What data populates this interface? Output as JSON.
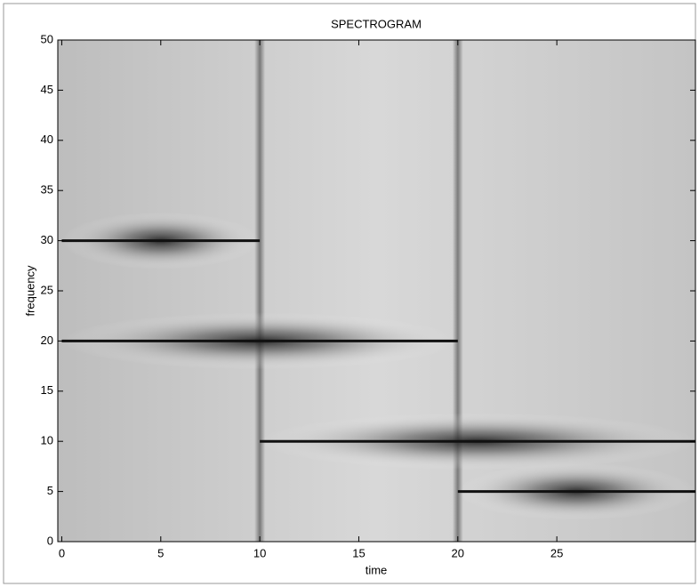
{
  "chart_data": {
    "type": "spectrogram",
    "title": "SPECTROGRAM",
    "xlabel": "time",
    "ylabel": "frequency",
    "xlim": [
      -0.2,
      32
    ],
    "ylim": [
      0,
      50
    ],
    "xticks": [
      0,
      5,
      10,
      15,
      20,
      25
    ],
    "yticks": [
      0,
      5,
      10,
      15,
      20,
      25,
      30,
      35,
      40,
      45,
      50
    ],
    "tones": [
      {
        "start": 0,
        "end": 10,
        "frequency": 30
      },
      {
        "start": 0,
        "end": 20,
        "frequency": 20
      },
      {
        "start": 10,
        "end": 32,
        "frequency": 10
      },
      {
        "start": 20,
        "end": 32,
        "frequency": 5
      }
    ]
  }
}
